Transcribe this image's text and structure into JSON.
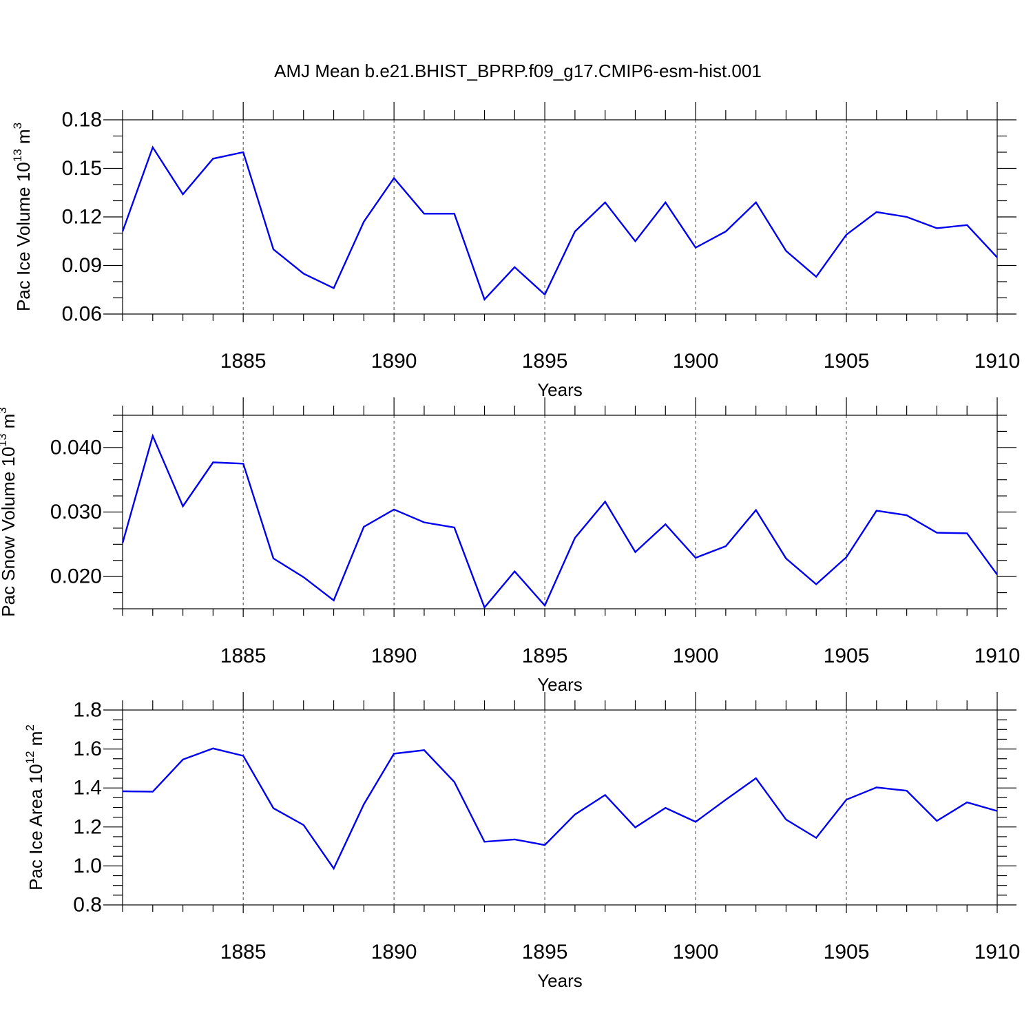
{
  "title": "AMJ Mean b.e21.BHIST_BPRP.f09_g17.CMIP6-esm-hist.001",
  "colors": {
    "line": "#0000ee",
    "axis": "#000000"
  },
  "chart_data": [
    {
      "type": "line",
      "ylabel": {
        "text": "Pac Ice Volume 10",
        "exp": "13",
        "unit": " m",
        "unit_exp": "3"
      },
      "xlabel": "Years",
      "xlim": [
        1881,
        1910
      ],
      "ylim": [
        0.06,
        0.18
      ],
      "xticks": [
        1885,
        1890,
        1895,
        1900,
        1905,
        1910
      ],
      "yticks": [
        {
          "v": 0.06,
          "label": "0.06"
        },
        {
          "v": 0.09,
          "label": "0.09"
        },
        {
          "v": 0.12,
          "label": "0.12"
        },
        {
          "v": 0.15,
          "label": "0.15"
        },
        {
          "v": 0.18,
          "label": "0.18"
        }
      ],
      "y_minor_step": 0.01,
      "x": [
        1881,
        1882,
        1883,
        1884,
        1885,
        1886,
        1887,
        1888,
        1889,
        1890,
        1891,
        1892,
        1893,
        1894,
        1895,
        1896,
        1897,
        1898,
        1899,
        1900,
        1901,
        1902,
        1903,
        1904,
        1905,
        1906,
        1907,
        1908,
        1909,
        1910
      ],
      "values": [
        0.111,
        0.163,
        0.134,
        0.156,
        0.16,
        0.1,
        0.085,
        0.076,
        0.117,
        0.144,
        0.122,
        0.122,
        0.069,
        0.089,
        0.072,
        0.111,
        0.129,
        0.105,
        0.129,
        0.101,
        0.111,
        0.129,
        0.099,
        0.083,
        0.109,
        0.123,
        0.12,
        0.113,
        0.115,
        0.095
      ]
    },
    {
      "type": "line",
      "ylabel": {
        "text": "Pac Snow Volume 10",
        "exp": "13",
        "unit": " m",
        "unit_exp": "3"
      },
      "xlabel": "Years",
      "xlim": [
        1881,
        1910
      ],
      "ylim": [
        0.015,
        0.045
      ],
      "xticks": [
        1885,
        1890,
        1895,
        1900,
        1905,
        1910
      ],
      "yticks": [
        {
          "v": 0.02,
          "label": "0.020"
        },
        {
          "v": 0.03,
          "label": "0.030"
        },
        {
          "v": 0.04,
          "label": "0.040"
        }
      ],
      "y_minor_step": 0.0025,
      "x": [
        1881,
        1882,
        1883,
        1884,
        1885,
        1886,
        1887,
        1888,
        1889,
        1890,
        1891,
        1892,
        1893,
        1894,
        1895,
        1896,
        1897,
        1898,
        1899,
        1900,
        1901,
        1902,
        1903,
        1904,
        1905,
        1906,
        1907,
        1908,
        1909,
        1910
      ],
      "values": [
        0.0252,
        0.0418,
        0.0309,
        0.0377,
        0.0375,
        0.0228,
        0.0199,
        0.0163,
        0.0277,
        0.0304,
        0.0284,
        0.0276,
        0.0152,
        0.0208,
        0.0155,
        0.026,
        0.0316,
        0.0238,
        0.0281,
        0.0229,
        0.0247,
        0.0303,
        0.0228,
        0.0188,
        0.023,
        0.0302,
        0.0295,
        0.0268,
        0.0267,
        0.0203
      ]
    },
    {
      "type": "line",
      "ylabel": {
        "text": "Pac Ice Area 10",
        "exp": "12",
        "unit": " m",
        "unit_exp": "2"
      },
      "xlabel": "Years",
      "xlim": [
        1881,
        1910
      ],
      "ylim": [
        0.8,
        1.8
      ],
      "xticks": [
        1885,
        1890,
        1895,
        1900,
        1905,
        1910
      ],
      "yticks": [
        {
          "v": 0.8,
          "label": "0.8"
        },
        {
          "v": 1.0,
          "label": "1.0"
        },
        {
          "v": 1.2,
          "label": "1.2"
        },
        {
          "v": 1.4,
          "label": "1.4"
        },
        {
          "v": 1.6,
          "label": "1.6"
        },
        {
          "v": 1.8,
          "label": "1.8"
        }
      ],
      "y_minor_step": 0.05,
      "x": [
        1881,
        1882,
        1883,
        1884,
        1885,
        1886,
        1887,
        1888,
        1889,
        1890,
        1891,
        1892,
        1893,
        1894,
        1895,
        1896,
        1897,
        1898,
        1899,
        1900,
        1901,
        1902,
        1903,
        1904,
        1905,
        1906,
        1907,
        1908,
        1909,
        1910
      ],
      "values": [
        1.383,
        1.381,
        1.546,
        1.603,
        1.565,
        1.296,
        1.21,
        0.987,
        1.316,
        1.576,
        1.594,
        1.431,
        1.124,
        1.136,
        1.107,
        1.264,
        1.364,
        1.198,
        1.298,
        1.226,
        1.34,
        1.45,
        1.238,
        1.144,
        1.34,
        1.403,
        1.386,
        1.231,
        1.326,
        1.282
      ]
    }
  ]
}
